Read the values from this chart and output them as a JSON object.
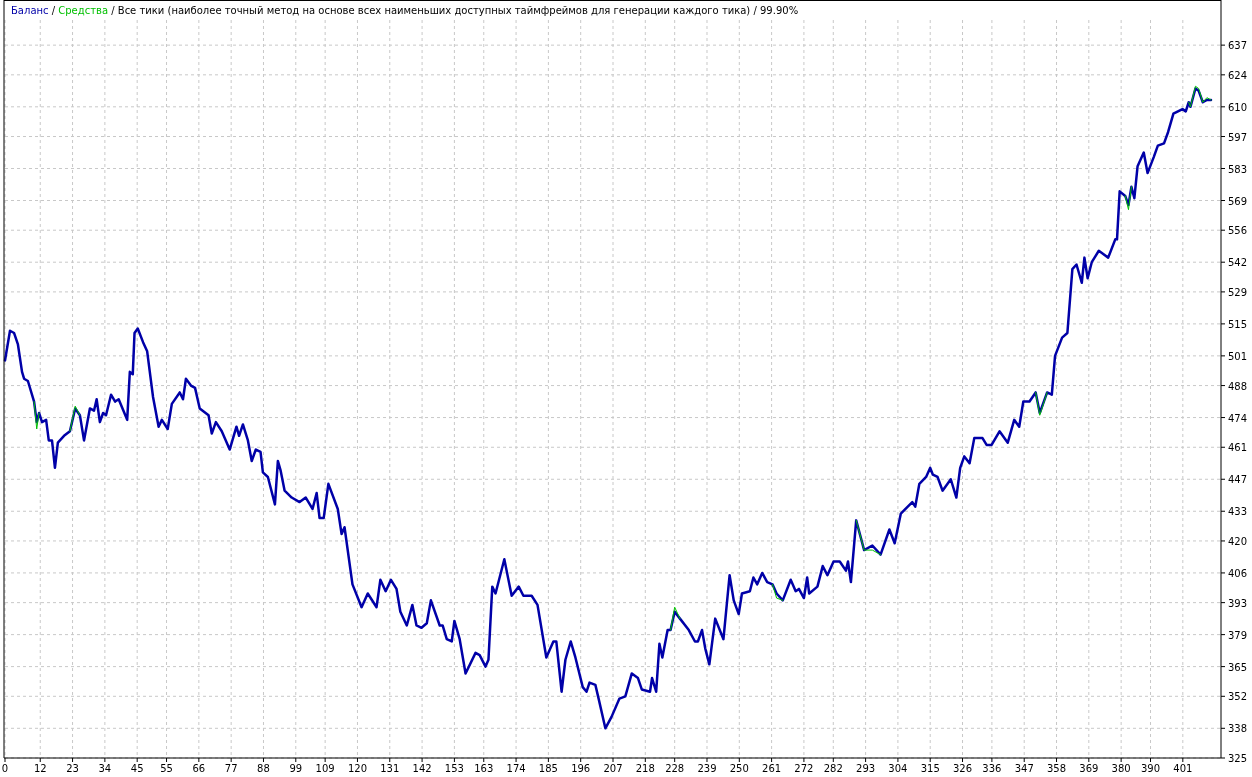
{
  "chart_data": {
    "type": "line",
    "annotations": [
      "/",
      "/"
    ],
    "title": "Все тики (наиболее точный метод на основе всех наименьших доступных таймфреймов для генерации каждого тика) / 99.90%",
    "legend": "top left",
    "grid": true,
    "marker": "none",
    "line_style": "solid",
    "xlim": [
      0,
      414
    ],
    "ylim": [
      325,
      648
    ],
    "xticks": [
      0,
      12,
      23,
      34,
      45,
      55,
      66,
      77,
      88,
      99,
      109,
      120,
      131,
      142,
      153,
      163,
      174,
      185,
      196,
      207,
      218,
      228,
      239,
      250,
      261,
      272,
      282,
      293,
      304,
      315,
      326,
      336,
      347,
      358,
      369,
      380,
      390,
      401
    ],
    "yticks": [
      325,
      338,
      352,
      365,
      379,
      393,
      406,
      420,
      433,
      447,
      461,
      474,
      488,
      501,
      515,
      529,
      542,
      556,
      569,
      583,
      597,
      610,
      624,
      637
    ],
    "x": [
      0,
      1.7,
      3.1,
      4.4,
      5.8,
      6.5,
      7.8,
      9.9,
      10.8,
      11.6,
      12.6,
      14,
      14.9,
      16,
      17,
      18,
      20.1,
      22.1,
      23.9,
      25.5,
      26.9,
      28.9,
      30.3,
      31.2,
      32.3,
      33.4,
      34.4,
      36.1,
      37.5,
      38.7,
      41.6,
      42.5,
      43.5,
      44.1,
      45.2,
      47,
      48.4,
      50.4,
      52.3,
      53.4,
      55.4,
      56.8,
      59.5,
      60.6,
      61.6,
      63.3,
      64.7,
      66.3,
      69.3,
      70.4,
      71.8,
      73.8,
      76.5,
      78.8,
      79.7,
      81,
      82.7,
      84,
      85.4,
      87,
      87.8,
      89.5,
      91.9,
      92.9,
      93.8,
      95.2,
      97.6,
      100.3,
      102.4,
      104.7,
      106.1,
      107.1,
      108.5,
      110.1,
      113.3,
      114.6,
      115.6,
      118.3,
      121.4,
      123.5,
      126.5,
      127.8,
      129.6,
      131.4,
      133.3,
      134.6,
      136.8,
      138.7,
      140.1,
      141.8,
      143.6,
      145,
      148,
      149,
      150.4,
      152.1,
      153,
      154.8,
      156.8,
      160.2,
      161.6,
      163.6,
      164.6,
      165.9,
      167,
      170,
      172.5,
      174.9,
      176.5,
      179.3,
      181.3,
      184.3,
      186.7,
      187.7,
      189.5,
      190.8,
      192.6,
      194.2,
      196.7,
      198,
      199,
      201,
      202.1,
      204.4,
      206.5,
      209.2,
      211.2,
      213.4,
      215.5,
      216.8,
      219.6,
      220.3,
      221.7,
      222.8,
      223.8,
      225.6,
      226.6,
      228,
      229.8,
      232.8,
      234.9,
      235.9,
      237.3,
      238.4,
      239.8,
      241.8,
      244.6,
      246.7,
      248.1,
      249.8,
      250.9,
      253.6,
      254.8,
      256.1,
      257.8,
      259.5,
      261.3,
      262.7,
      264.8,
      267.5,
      269.2,
      270.3,
      272,
      273.1,
      273.8,
      276.6,
      278.4,
      280,
      282.1,
      284.2,
      286.3,
      287,
      288,
      289.8,
      292.5,
      295.3,
      298.1,
      301.1,
      302.9,
      305,
      308.9,
      309.9,
      311.3,
      313.6,
      315,
      315.9,
      317.5,
      319.2,
      322,
      323.9,
      325.2,
      326.6,
      328.4,
      330,
      332.8,
      334.2,
      335.9,
      338.6,
      341.4,
      343.6,
      345.3,
      346.7,
      348.8,
      350.9,
      352.3,
      354.8,
      356.4,
      357.5,
      359.9,
      361.7,
      363.4,
      364.8,
      366.6,
      367.5,
      368.6,
      370,
      372.4,
      375.6,
      378,
      378.6,
      379.5,
      381.4,
      382.5,
      383.5,
      384.5,
      385.6,
      387.7,
      389,
      391.1,
      392.5,
      394.6,
      396,
      397.8,
      400.9,
      402,
      403,
      403.6,
      405.3,
      406.4,
      407.8,
      409.2,
      410.6
    ],
    "series": [
      {
        "name": "Баланс",
        "color": "#0000a8",
        "values": [
          499,
          512,
          511,
          506,
          494,
          491,
          490,
          481,
          472,
          476,
          472,
          473,
          464,
          464,
          452,
          463,
          466,
          468,
          478,
          475,
          464,
          478,
          477,
          482,
          472,
          476,
          475,
          484,
          481,
          482,
          473,
          494,
          493,
          511,
          513,
          507,
          503,
          483,
          470,
          473,
          469,
          480,
          485,
          482,
          491,
          488,
          487,
          478,
          475,
          467,
          472,
          468,
          460,
          470,
          466,
          471,
          464,
          455,
          460,
          459,
          450,
          448,
          436,
          455,
          451,
          442,
          439,
          437,
          439,
          434,
          441,
          430,
          430,
          445,
          434,
          423,
          426,
          401,
          391,
          397,
          391,
          403,
          398,
          403,
          399,
          389,
          383,
          392,
          383,
          382,
          384,
          394,
          383,
          383,
          377,
          376,
          385,
          377,
          362,
          371,
          370,
          365,
          368,
          400,
          397,
          412,
          396,
          400,
          396,
          396,
          392,
          369,
          376,
          376,
          354,
          368,
          376,
          369,
          356,
          354,
          358,
          357,
          351,
          338,
          343,
          351,
          352,
          362,
          360,
          355,
          354,
          360,
          354,
          375,
          369,
          381,
          381,
          389,
          386,
          381,
          376,
          376,
          381,
          373,
          366,
          386,
          377,
          405,
          394,
          388,
          397,
          398,
          404,
          401,
          406,
          402,
          401,
          397,
          394,
          403,
          398,
          399,
          395,
          404,
          397,
          400,
          409,
          405,
          411,
          411,
          407,
          411,
          402,
          429,
          416,
          418,
          414,
          425,
          419,
          432,
          437,
          435,
          445,
          448,
          452,
          449,
          448,
          442,
          447,
          439,
          452,
          457,
          454,
          465,
          465,
          462,
          462,
          468,
          463,
          473,
          470,
          481,
          481,
          485,
          476,
          485,
          484,
          501,
          509,
          511,
          539,
          541,
          533,
          544,
          535,
          542,
          547,
          544,
          552,
          552,
          573,
          571,
          567,
          575,
          570,
          584,
          590,
          581,
          588,
          593,
          594,
          599,
          607,
          609,
          608,
          612,
          610,
          618,
          617,
          612,
          613,
          613
        ]
      },
      {
        "name": "Средства",
        "color": "#00c000",
        "x": [
          9.9,
          10.8,
          11.6,
          null,
          22.1,
          23.9,
          25.5,
          null,
          226.6,
          228,
          229.8,
          null,
          261.3,
          262.7,
          264.8,
          null,
          289.8,
          292.5,
          295.3,
          298.1,
          null,
          350.9,
          352.3,
          354.8,
          null,
          381.4,
          382.5,
          383.5,
          null,
          403,
          403.6,
          405.3,
          406.4,
          407.8,
          409.2,
          410.6
        ],
        "values": [
          481,
          469,
          476,
          null,
          468,
          479,
          475,
          null,
          381,
          391,
          386,
          null,
          401,
          395,
          394,
          null,
          429,
          416,
          416,
          414,
          null,
          485,
          475,
          485,
          null,
          571,
          565,
          575,
          null,
          612,
          610,
          619,
          618,
          612,
          614,
          613
        ]
      }
    ]
  }
}
